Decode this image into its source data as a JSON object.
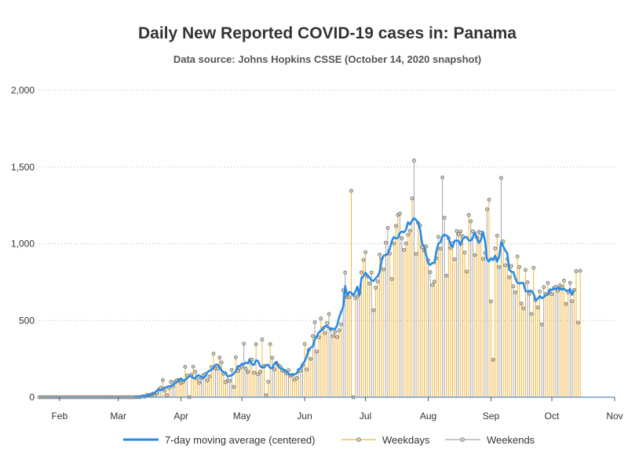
{
  "colors": {
    "weekday": "#f0b53c",
    "weekend": "#a6a6a6",
    "moving_average": "#2a8be6",
    "marker_fill": "#d9d1b8",
    "marker_stroke": "#6b6b6b",
    "grid": "#b3b3b3",
    "axis": "#7a9cbf"
  },
  "chart_data": {
    "type": "bar",
    "title": "Daily New Reported COVID-19 cases in: Panama",
    "subtitle": "Data source: Johns Hopkins CSSE (October 14, 2020 snapshot)",
    "xlabel": "",
    "ylabel": "",
    "ylim": [
      0,
      2000
    ],
    "yticks": [
      0,
      500,
      1000,
      1500,
      2000
    ],
    "ytick_labels": [
      "0",
      "500",
      "1,000",
      "1,500",
      "2,000"
    ],
    "xlim": [
      "2020-01-22",
      "2020-11-01"
    ],
    "xticks": [
      "2020-02-01",
      "2020-03-01",
      "2020-04-01",
      "2020-05-01",
      "2020-06-01",
      "2020-07-01",
      "2020-08-01",
      "2020-09-01",
      "2020-10-01",
      "2020-11-01"
    ],
    "xtick_labels": [
      "Feb",
      "Mar",
      "Apr",
      "May",
      "Jun",
      "Jul",
      "Aug",
      "Sep",
      "Oct",
      "Nov"
    ],
    "grid": true,
    "legend_position": "bottom",
    "legend": [
      "7-day moving average (centered)",
      "Weekdays",
      "Weekends"
    ],
    "first_date": "2020-01-22",
    "daily_new_cases": [
      0,
      0,
      0,
      0,
      0,
      0,
      0,
      0,
      0,
      0,
      0,
      0,
      0,
      0,
      0,
      0,
      0,
      0,
      0,
      0,
      0,
      0,
      0,
      0,
      0,
      0,
      0,
      0,
      0,
      0,
      0,
      0,
      0,
      0,
      0,
      0,
      0,
      0,
      0,
      0,
      0,
      0,
      0,
      0,
      0,
      0,
      0,
      0,
      0,
      1,
      0,
      7,
      3,
      14,
      15,
      16,
      23,
      10,
      27,
      51,
      62,
      111,
      44,
      14,
      61,
      100,
      74,
      101,
      111,
      111,
      92,
      101,
      198,
      142,
      0,
      147,
      199,
      166,
      121,
      95,
      123,
      143,
      151,
      110,
      135,
      197,
      283,
      187,
      188,
      258,
      226,
      152,
      99,
      109,
      108,
      178,
      67,
      260,
      171,
      191,
      200,
      349,
      187,
      165,
      242,
      245,
      160,
      345,
      151,
      166,
      376,
      204,
      13,
      101,
      346,
      257,
      182,
      224,
      209,
      199,
      175,
      171,
      155,
      176,
      139,
      145,
      115,
      125,
      171,
      173,
      209,
      347,
      181,
      307,
      250,
      398,
      488,
      298,
      390,
      513,
      449,
      418,
      483,
      542,
      444,
      399,
      425,
      392,
      436,
      475,
      697,
      812,
      652,
      651,
      1345,
      0,
      647,
      659,
      681,
      814,
      895,
      945,
      788,
      740,
      812,
      567,
      714,
      755,
      929,
      902,
      833,
      1007,
      1103,
      935,
      770,
      1001,
      1116,
      1188,
      1196,
      1036,
      960,
      1002,
      1059,
      1085,
      1296,
      1542,
      934,
      1135,
      1118,
      978,
      956,
      983,
      893,
      815,
      731,
      753,
      905,
      1045,
      968,
      1432,
      1169,
      792,
      1035,
      972,
      1003,
      899,
      1083,
      1062,
      1080,
      1049,
      943,
      819,
      1187,
      1147,
      1081,
      926,
      1041,
      1077,
      1072,
      902,
      940,
      1224,
      1287,
      624,
      244,
      970,
      1053,
      849,
      1429,
      1015,
      860,
      900,
      781,
      855,
      723,
      683,
      917,
      849,
      610,
      579,
      829,
      749,
      673,
      543,
      843,
      633,
      585,
      689,
      474,
      717,
      673,
      744,
      682,
      671,
      713,
      719,
      694,
      730,
      720,
      760,
      607,
      683,
      745,
      626,
      699,
      821,
      486,
      824
    ]
  }
}
